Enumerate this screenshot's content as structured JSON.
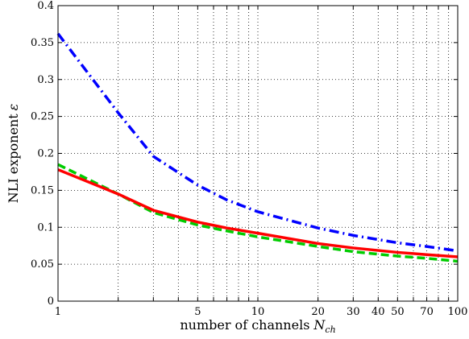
{
  "chart_data": {
    "type": "line",
    "x_scale": "log",
    "xlim": [
      1,
      100
    ],
    "ylim": [
      0,
      0.4
    ],
    "grid": true,
    "xlabel": "number of channels",
    "xlabel_symbol": "N",
    "xlabel_subscript": "ch",
    "ylabel": "NLI exponent",
    "ylabel_symbol": "ε",
    "x_ticks": [
      1,
      5,
      10,
      20,
      30,
      40,
      50,
      70,
      100
    ],
    "x_tick_labels": [
      "1",
      "5",
      "10",
      "20",
      "30",
      "40",
      "50",
      "70",
      "100"
    ],
    "x_grid": [
      1,
      2,
      3,
      4,
      5,
      6,
      7,
      8,
      9,
      10,
      20,
      30,
      40,
      50,
      60,
      70,
      80,
      90,
      100
    ],
    "y_ticks": [
      0,
      0.05,
      0.1,
      0.15,
      0.2,
      0.25,
      0.3,
      0.35,
      0.4
    ],
    "y_tick_labels": [
      "0",
      "0.05",
      "0.1",
      "0.15",
      "0.2",
      "0.25",
      "0.3",
      "0.35",
      "0.4"
    ],
    "series": [
      {
        "color": "#0000ff",
        "style": "dash-dot",
        "x": [
          1,
          2,
          3,
          5,
          7,
          10,
          20,
          30,
          50,
          70,
          100
        ],
        "y": [
          0.362,
          0.255,
          0.196,
          0.157,
          0.137,
          0.121,
          0.099,
          0.089,
          0.079,
          0.074,
          0.068
        ]
      },
      {
        "color": "#00cc00",
        "style": "dashed",
        "x": [
          1,
          2,
          3,
          5,
          7,
          10,
          20,
          30,
          50,
          70,
          100
        ],
        "y": [
          0.185,
          0.145,
          0.12,
          0.103,
          0.095,
          0.087,
          0.074,
          0.067,
          0.061,
          0.058,
          0.054
        ]
      },
      {
        "color": "#ff0000",
        "style": "solid",
        "x": [
          1,
          2,
          3,
          5,
          7,
          10,
          20,
          30,
          50,
          70,
          100
        ],
        "y": [
          0.178,
          0.145,
          0.123,
          0.107,
          0.099,
          0.092,
          0.078,
          0.072,
          0.066,
          0.063,
          0.06
        ]
      }
    ]
  }
}
